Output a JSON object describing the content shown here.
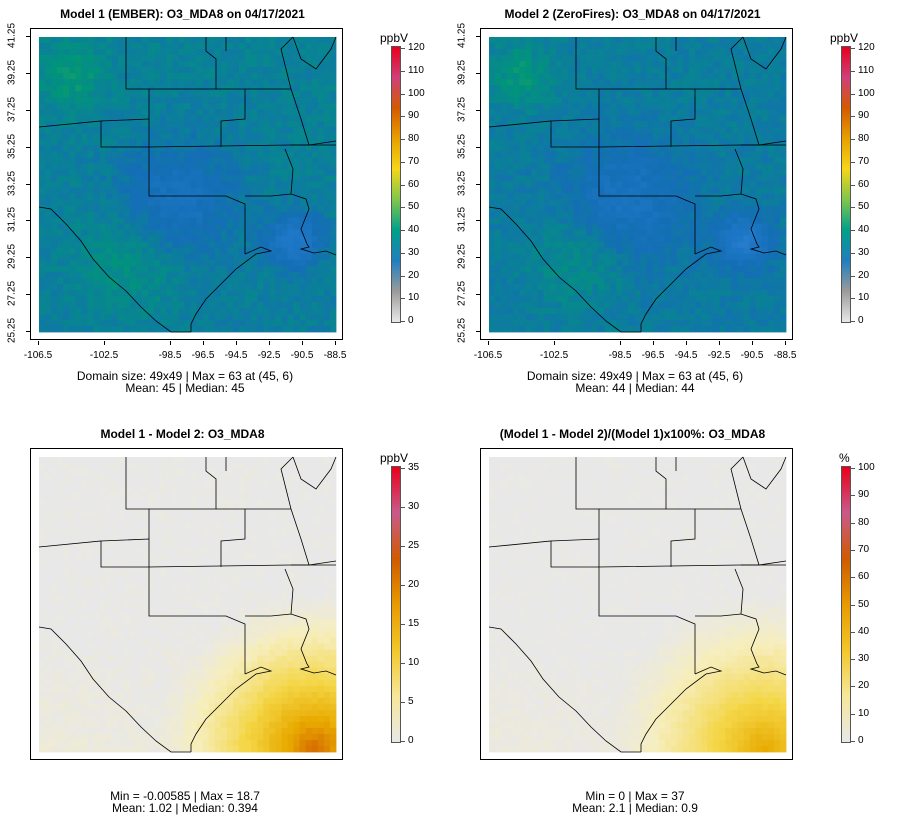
{
  "panels": [
    {
      "title": "Model 1 (EMBER): O3_MDA8 on 04/17/2021",
      "stats_line1": "Domain size: 49x49 | Max = 63 at (45, 6)",
      "stats_line2": "Mean: 45 |  Median: 45",
      "palette": "ozone",
      "show_axes": true,
      "colorbar": {
        "unit": "ppbV",
        "labels": [
          "120",
          "110",
          "100",
          "90",
          "80",
          "70",
          "60",
          "50",
          "40",
          "30",
          "20",
          "10",
          "0"
        ]
      }
    },
    {
      "title": "Model 2 (ZeroFires): O3_MDA8 on 04/17/2021",
      "stats_line1": "Domain size: 49x49 | Max = 63 at (45, 6)",
      "stats_line2": "Mean: 44 |  Median: 44",
      "palette": "ozone",
      "show_axes": true,
      "colorbar": {
        "unit": "ppbV",
        "labels": [
          "120",
          "110",
          "100",
          "90",
          "80",
          "70",
          "60",
          "50",
          "40",
          "30",
          "20",
          "10",
          "0"
        ]
      }
    },
    {
      "title": "Model 1 - Model 2: O3_MDA8",
      "stats_line1": "Min = -0.00585 | Max = 18.7",
      "stats_line2": "Mean: 1.02 |  Median: 0.394",
      "palette": "diff",
      "show_axes": false,
      "colorbar": {
        "unit": "ppbV",
        "labels": [
          "35",
          "30",
          "25",
          "20",
          "15",
          "10",
          "5",
          "0"
        ]
      }
    },
    {
      "title": "(Model 1 - Model 2)/(Model 1)x100%: O3_MDA8",
      "stats_line1": "Min = 0 | Max = 37",
      "stats_line2": "Mean: 2.1 |  Median: 0.9",
      "palette": "diff",
      "show_axes": false,
      "colorbar": {
        "unit": "%",
        "labels": [
          "100",
          "90",
          "80",
          "70",
          "60",
          "50",
          "40",
          "30",
          "20",
          "10",
          "0"
        ]
      }
    }
  ],
  "lat_ticks": [
    "41.25",
    "39.25",
    "37.25",
    "35.25",
    "33.25",
    "31.25",
    "29.25",
    "27.25",
    "25.25"
  ],
  "lon_ticks": [
    "-106.5",
    "-102.5",
    "-98.5",
    "-96.5",
    "-94.5",
    "-92.5",
    "-90.5",
    "-88.5"
  ],
  "colors": {
    "ozone_bar": [
      "#e8e8e8",
      "#9b9b9b",
      "#1f7fbf",
      "#00a08a",
      "#7fc64a",
      "#f5d61a",
      "#e8a000",
      "#d45a00",
      "#cf3f7a",
      "#e8001a"
    ],
    "diff_bar": [
      "#e8e8e8",
      "#f6e79a",
      "#f2c72a",
      "#e89a00",
      "#cf5a00",
      "#c95a8a",
      "#e8001a"
    ]
  }
}
